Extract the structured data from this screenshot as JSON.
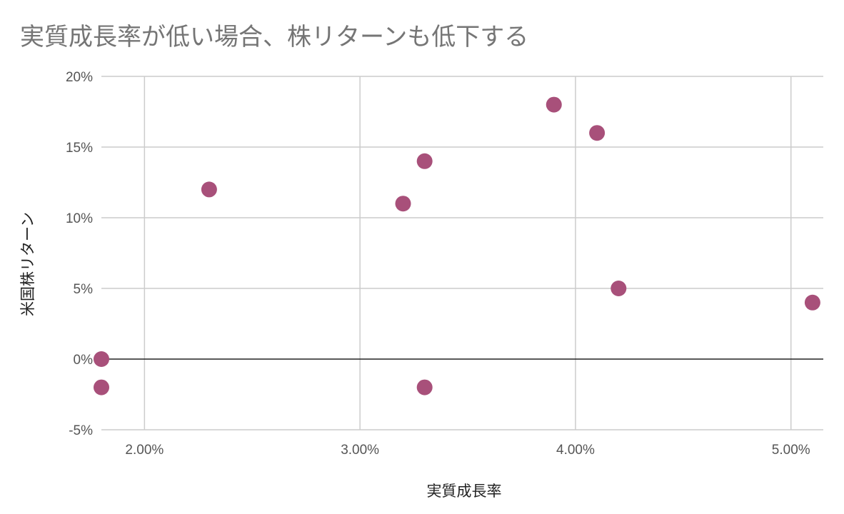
{
  "chart_data": {
    "type": "scatter",
    "title": "実質成長率が低い場合、株リターンも低下する",
    "xlabel": "実質成長率",
    "ylabel": "米国株リターン",
    "xlim": [
      1.8,
      5.15
    ],
    "ylim": [
      -5,
      20
    ],
    "x_ticks": [
      2,
      3,
      4,
      5
    ],
    "x_tick_labels": [
      "2.00%",
      "3.00%",
      "4.00%",
      "5.00%"
    ],
    "y_ticks": [
      -5,
      0,
      5,
      10,
      15,
      20
    ],
    "y_tick_labels": [
      "-5%",
      "0%",
      "5%",
      "10%",
      "15%",
      "20%"
    ],
    "grid": true,
    "point_color": "#A8507A",
    "points": [
      {
        "x": 1.8,
        "y": 0
      },
      {
        "x": 1.8,
        "y": -2
      },
      {
        "x": 2.3,
        "y": 12
      },
      {
        "x": 3.2,
        "y": 11
      },
      {
        "x": 3.3,
        "y": 14
      },
      {
        "x": 3.3,
        "y": -2
      },
      {
        "x": 3.9,
        "y": 18
      },
      {
        "x": 4.1,
        "y": 16
      },
      {
        "x": 4.2,
        "y": 5
      },
      {
        "x": 5.1,
        "y": 4
      }
    ]
  }
}
